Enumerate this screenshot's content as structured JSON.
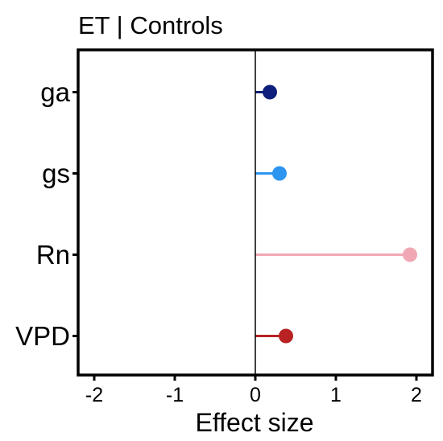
{
  "chart_data": {
    "type": "lollipop",
    "title": "ET | Controls",
    "xlabel": "Effect size",
    "ylabel": "",
    "xlim": [
      -2.2,
      2.2
    ],
    "x_ticks": [
      -2,
      -1,
      0,
      1,
      2
    ],
    "x_tick_labels": [
      "-2",
      "-1",
      "0",
      "1",
      "2"
    ],
    "reference_line": 0,
    "grid": false,
    "categories": [
      "ga",
      "gs",
      "Rn",
      "VPD"
    ],
    "values": [
      0.18,
      0.3,
      1.92,
      0.38
    ],
    "colors": [
      "#0d1f7a",
      "#2d95ef",
      "#f0a8b5",
      "#b82222"
    ]
  }
}
